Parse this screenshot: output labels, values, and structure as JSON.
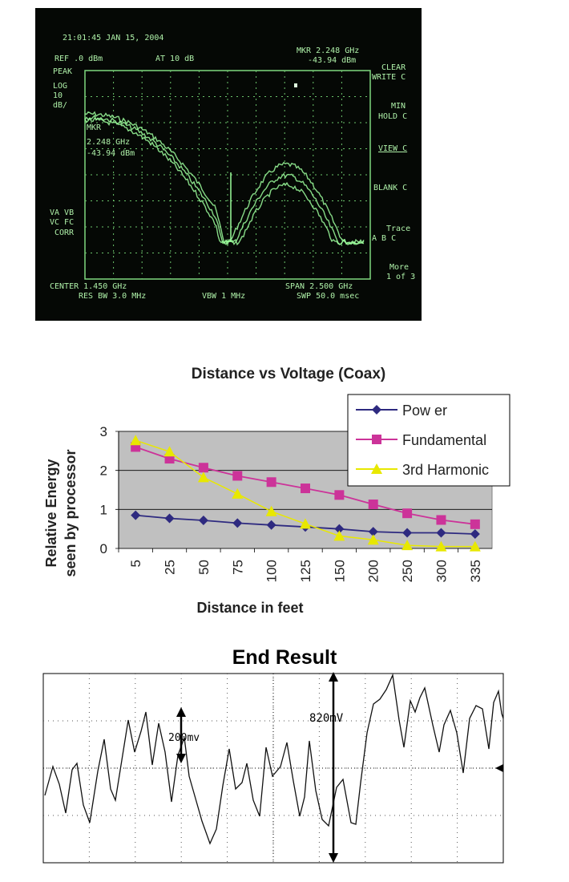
{
  "spectrum": {
    "header": {
      "timestamp": "21:01:45 JAN 15, 2004",
      "ref": "REF .0 dBm",
      "atten": "AT 10 dB",
      "marker": "MKR 2.248 GHz",
      "marker_level": "-43.94 dBm",
      "peak": "PEAK",
      "log": "LOG",
      "scale": "10",
      "unit": "dB/",
      "inset_marker": "MKR",
      "inset_freq": "2.248 GHz",
      "inset_level": "-43.94 dBm",
      "va": "VA VB",
      "vc": "VC FC",
      "corr": "CORR"
    },
    "softkeys": {
      "clear_1": "CLEAR",
      "clear_2": "WRITE C",
      "min_1": "MIN",
      "min_2": "HOLD C",
      "view": "VIEW C",
      "blank": "BLANK C",
      "trace_1": "Trace",
      "trace_2": "A B C",
      "more_1": "More",
      "more_2": "1 of 3"
    },
    "footer": {
      "center": "CENTER 1.450 GHz",
      "res_bw": "RES BW 3.0 MHz",
      "vbw": "VBW 1 MHz",
      "span": "SPAN 2.500 GHz",
      "sweep": "SWP 50.0 msec"
    },
    "trace_color": "#9dff9d"
  },
  "chart_data": [
    {
      "type": "line",
      "title": "Distance vs Voltage (Coax)",
      "xlabel": "Distance in feet",
      "ylabel_line1": "Relative Energy",
      "ylabel_line2": "seen by processor",
      "categories": [
        "5",
        "25",
        "50",
        "75",
        "100",
        "125",
        "150",
        "200",
        "250",
        "300",
        "335"
      ],
      "ylim": [
        0,
        3
      ],
      "yticks": [
        "0",
        "1",
        "2",
        "3"
      ],
      "plot_background": "#c0c0c0",
      "legend_position": "top-right",
      "series": [
        {
          "name": "Pow er",
          "color": "#2e2a80",
          "marker": "diamond",
          "values": [
            0.85,
            0.77,
            0.72,
            0.65,
            0.6,
            0.55,
            0.5,
            0.43,
            0.4,
            0.4,
            0.37
          ]
        },
        {
          "name": "Fundamental",
          "color": "#cc3399",
          "marker": "square",
          "values": [
            2.6,
            2.3,
            2.07,
            1.86,
            1.7,
            1.54,
            1.37,
            1.13,
            0.9,
            0.73,
            0.62
          ]
        },
        {
          "name": "3rd Harmonic",
          "color": "#e8e800",
          "marker": "triangle",
          "values": [
            2.77,
            2.48,
            1.82,
            1.4,
            0.95,
            0.63,
            0.32,
            0.22,
            0.08,
            0.05,
            0.05
          ]
        }
      ]
    },
    {
      "type": "line",
      "title": "End Result",
      "annotations": [
        "200mv",
        "820mV"
      ],
      "line_color": "#111111"
    }
  ]
}
